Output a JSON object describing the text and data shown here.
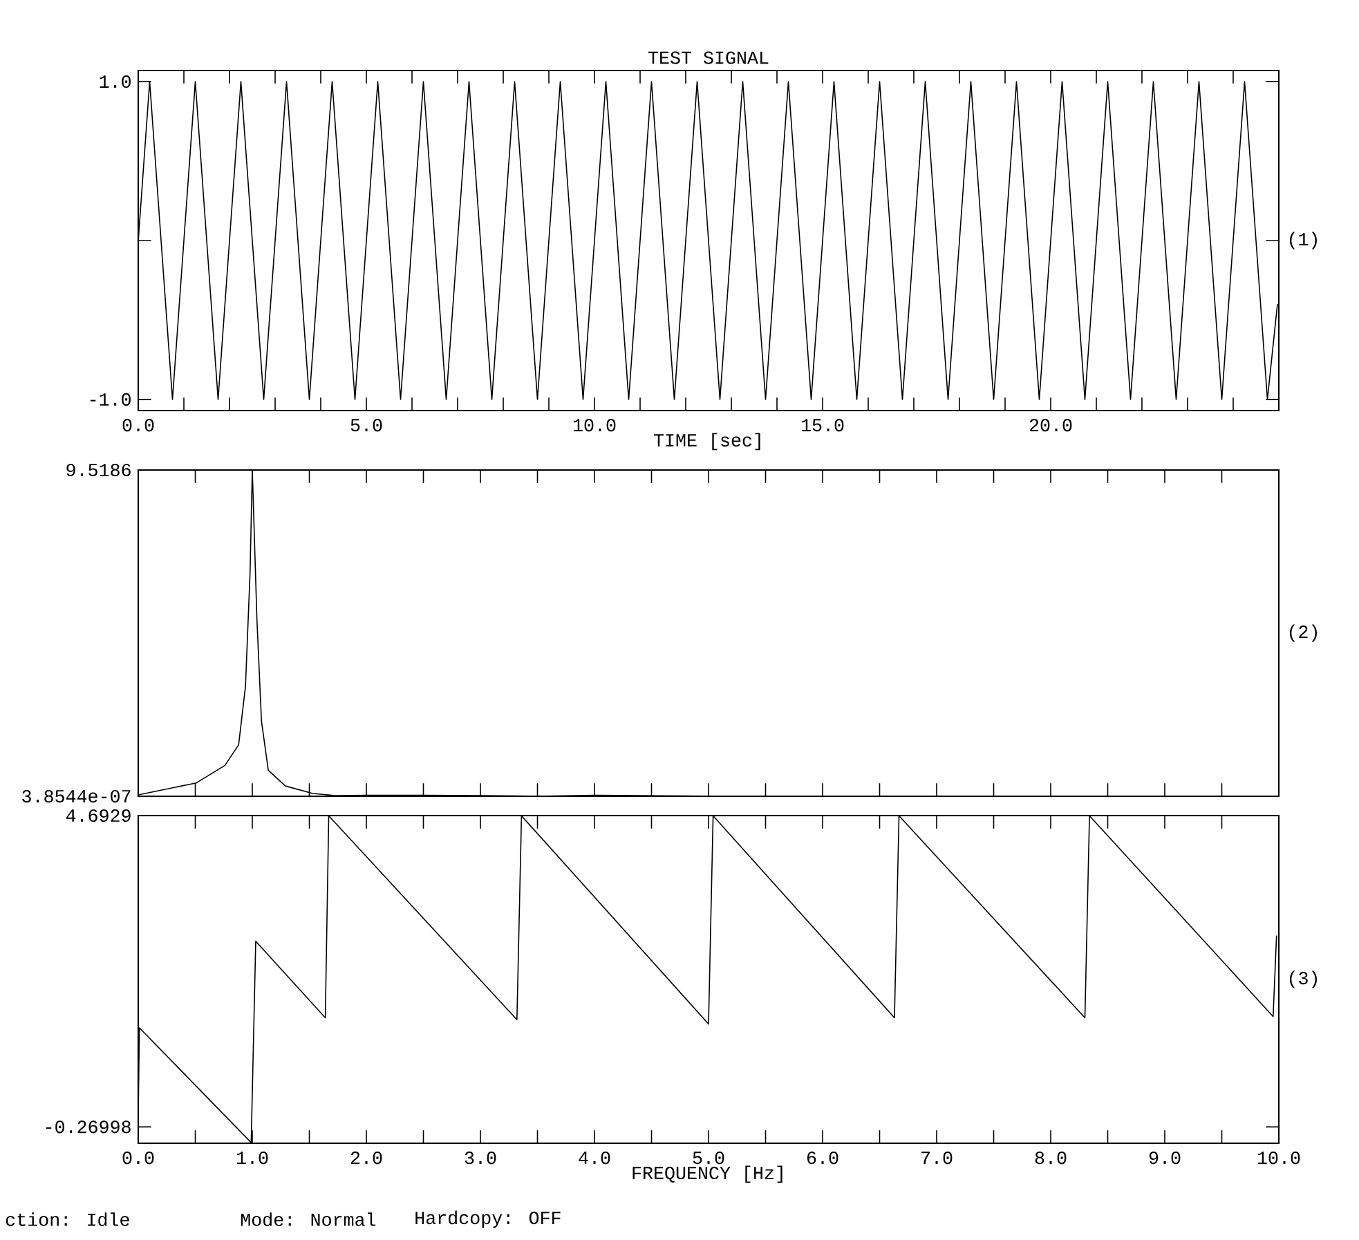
{
  "chart_data": [
    {
      "type": "line",
      "title": "TEST SIGNAL",
      "xlabel": "TIME [sec]",
      "xlim": [
        0,
        25
      ],
      "ylim": [
        -1.07,
        1.07
      ],
      "xticks": [
        {
          "value": 0,
          "label": "0.0"
        },
        {
          "value": 1,
          "label": null
        },
        {
          "value": 2,
          "label": null
        },
        {
          "value": 3,
          "label": null
        },
        {
          "value": 4,
          "label": null
        },
        {
          "value": 5,
          "label": "5.0"
        },
        {
          "value": 6,
          "label": null
        },
        {
          "value": 7,
          "label": null
        },
        {
          "value": 8,
          "label": null
        },
        {
          "value": 9,
          "label": null
        },
        {
          "value": 10,
          "label": "10.0"
        },
        {
          "value": 11,
          "label": null
        },
        {
          "value": 12,
          "label": null
        },
        {
          "value": 13,
          "label": null
        },
        {
          "value": 14,
          "label": null
        },
        {
          "value": 15,
          "label": "15.0"
        },
        {
          "value": 16,
          "label": null
        },
        {
          "value": 17,
          "label": null
        },
        {
          "value": 18,
          "label": null
        },
        {
          "value": 19,
          "label": null
        },
        {
          "value": 20,
          "label": "20.0"
        },
        {
          "value": 21,
          "label": null
        },
        {
          "value": 22,
          "label": null
        },
        {
          "value": 23,
          "label": null
        },
        {
          "value": 24,
          "label": null
        }
      ],
      "yticks": [
        {
          "value": -1,
          "label": "-1.0"
        },
        {
          "value": 0,
          "label": null
        },
        {
          "value": 1,
          "label": "1.0"
        }
      ],
      "marker": "none",
      "line_style": "solid",
      "annotations": [
        "(1)"
      ],
      "series": [
        {
          "color": "#000000",
          "x": [
            0,
            0.25,
            0.5,
            0.75,
            1,
            1.25,
            1.5,
            1.75,
            2,
            2.25,
            2.5,
            2.75,
            3,
            3.25,
            3.5,
            3.75,
            4,
            4.25,
            4.5,
            4.75,
            5,
            5.25,
            5.5,
            5.75,
            6,
            6.25,
            6.5,
            6.75,
            7,
            7.25,
            7.5,
            7.75,
            8,
            8.25,
            8.5,
            8.75,
            9,
            9.25,
            9.5,
            9.75,
            10,
            10.25,
            10.5,
            10.75,
            11,
            11.25,
            11.5,
            11.75,
            12,
            12.25,
            12.5,
            12.75,
            13,
            13.25,
            13.5,
            13.75,
            14,
            14.25,
            14.5,
            14.75,
            15,
            15.25,
            15.5,
            15.75,
            16,
            16.25,
            16.5,
            16.75,
            17,
            17.25,
            17.5,
            17.75,
            18,
            18.25,
            18.5,
            18.75,
            19,
            19.25,
            19.5,
            19.75,
            20,
            20.25,
            20.5,
            20.75,
            21,
            21.25,
            21.5,
            21.75,
            22,
            22.25,
            22.5,
            22.75,
            23,
            23.25,
            23.5,
            23.75,
            24,
            24.25,
            24.5,
            24.75,
            24.97
          ],
          "values": [
            0,
            1,
            0,
            -1,
            0,
            1,
            0,
            -1,
            0,
            1,
            0,
            -1,
            0,
            1,
            0,
            -1,
            0,
            1,
            0,
            -1,
            0,
            1,
            0,
            -1,
            0,
            1,
            0,
            -1,
            0,
            1,
            0,
            -1,
            0,
            1,
            0,
            -1,
            0,
            1,
            0,
            -1,
            0,
            1,
            0,
            -1,
            0,
            1,
            0,
            -1,
            0,
            1,
            0,
            -1,
            0,
            1,
            0,
            -1,
            0,
            1,
            0,
            -1,
            0,
            1,
            0,
            -1,
            0,
            1,
            0,
            -1,
            0,
            1,
            0,
            -1,
            0,
            1,
            0,
            -1,
            0,
            1,
            0,
            -1,
            0,
            1,
            0,
            -1,
            0,
            1,
            0,
            -1,
            0,
            1,
            0,
            -1,
            0,
            1,
            0,
            -1,
            0,
            1,
            0,
            -1,
            -0.4
          ]
        }
      ]
    },
    {
      "type": "line",
      "tick_labels": "y",
      "xlim": [
        0,
        10
      ],
      "ylim": [
        3.8544e-07,
        9.5186
      ],
      "xticks": [
        {
          "value": 0,
          "label": null
        },
        {
          "value": 0.5,
          "label": null
        },
        {
          "value": 1,
          "label": null
        },
        {
          "value": 1.5,
          "label": null
        },
        {
          "value": 2,
          "label": null
        },
        {
          "value": 2.5,
          "label": null
        },
        {
          "value": 3,
          "label": null
        },
        {
          "value": 3.5,
          "label": null
        },
        {
          "value": 4,
          "label": null
        },
        {
          "value": 4.5,
          "label": null
        },
        {
          "value": 5,
          "label": null
        },
        {
          "value": 5.5,
          "label": null
        },
        {
          "value": 6,
          "label": null
        },
        {
          "value": 6.5,
          "label": null
        },
        {
          "value": 7,
          "label": null
        },
        {
          "value": 7.5,
          "label": null
        },
        {
          "value": 8,
          "label": null
        },
        {
          "value": 8.5,
          "label": null
        },
        {
          "value": 9,
          "label": null
        },
        {
          "value": 9.5,
          "label": null
        },
        {
          "value": 10,
          "label": null
        }
      ],
      "yticks": [
        {
          "value": 3.8544e-07,
          "label": "3.8544e-07"
        },
        9.5186
      ],
      "marker": "none",
      "line_style": "solid",
      "annotations": [
        "(2)"
      ],
      "series": [
        {
          "color": "#000000",
          "x": [
            0,
            0.51,
            0.76,
            0.88,
            0.94,
            0.98,
            1.0,
            1.04,
            1.08,
            1.14,
            1.29,
            1.53,
            1.73,
            2.0,
            2.5,
            3.0,
            3.3,
            3.5,
            4.0,
            4.4,
            5.0,
            6.0,
            7.0,
            8.0,
            9.0,
            10.0
          ],
          "values": [
            0.04,
            0.39,
            0.9,
            1.5,
            3.2,
            6.5,
            9.5186,
            5.2,
            2.2,
            0.76,
            0.3,
            0.08,
            0.02,
            0.03,
            0.03,
            0.02,
            0.01,
            0.001,
            0.03,
            0.02,
            0.001,
            0.001,
            0.001,
            0.001,
            0.001,
            0.001
          ]
        }
      ]
    },
    {
      "type": "line",
      "xlabel": "FREQUENCY [Hz]",
      "xlim": [
        0,
        10
      ],
      "ylim": [
        -0.53,
        4.6929
      ],
      "xticks": [
        {
          "value": 0,
          "label": "0.0"
        },
        {
          "value": 0.5,
          "label": null
        },
        {
          "value": 1,
          "label": "1.0"
        },
        {
          "value": 1.5,
          "label": null
        },
        {
          "value": 2,
          "label": "2.0"
        },
        {
          "value": 2.5,
          "label": null
        },
        {
          "value": 3,
          "label": "3.0"
        },
        {
          "value": 3.5,
          "label": null
        },
        {
          "value": 4,
          "label": "4.0"
        },
        {
          "value": 4.5,
          "label": null
        },
        {
          "value": 5,
          "label": "5.0"
        },
        {
          "value": 5.5,
          "label": null
        },
        {
          "value": 6,
          "label": "6.0"
        },
        {
          "value": 6.5,
          "label": null
        },
        {
          "value": 7,
          "label": "7.0"
        },
        {
          "value": 7.5,
          "label": null
        },
        {
          "value": 8,
          "label": "8.0"
        },
        {
          "value": 8.5,
          "label": null
        },
        {
          "value": 9,
          "label": "9.0"
        },
        {
          "value": 9.5,
          "label": null
        },
        {
          "value": 10,
          "label": "10.0"
        }
      ],
      "yticks": [
        -0.26998,
        4.6929
      ],
      "marker": "none",
      "line_style": "solid",
      "annotations": [
        "(3)",
        "ction: Idle",
        "Mode: Normal",
        "Hardcopy: OFF"
      ],
      "series": [
        {
          "color": "#000000",
          "x": [
            0,
            0.01,
            0.99,
            1.03,
            1.64,
            1.67,
            3.32,
            3.36,
            5.0,
            5.04,
            6.63,
            6.67,
            8.3,
            8.34,
            9.95,
            9.98
          ],
          "values": [
            -0.02,
            1.31,
            -0.52,
            2.69,
            1.47,
            4.69,
            1.44,
            4.69,
            1.37,
            4.69,
            1.47,
            4.69,
            1.47,
            4.69,
            1.49,
            2.78
          ]
        }
      ]
    }
  ]
}
